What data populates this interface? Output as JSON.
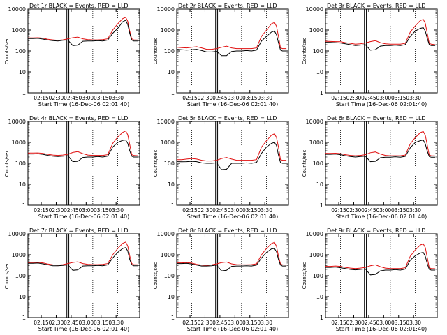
{
  "chart_data": {
    "type": "line",
    "layout": "3x3 small multiples",
    "shared": {
      "xlabel": "Start Time (16-Dec-06 02:01:40)",
      "ylabel": "Counts/sec",
      "yscale": "log",
      "ylim": [
        1,
        10000
      ],
      "ytick_labels": [
        "1",
        "10",
        "100",
        "1000",
        "10000"
      ],
      "xlim_minutes": [
        0,
        112
      ],
      "xtick_labels": [
        "02:15",
        "02:30",
        "02:45",
        "03:00",
        "03:15",
        "03:30"
      ],
      "x_sample_minutes": [
        0,
        5,
        10,
        15,
        20,
        25,
        30,
        35,
        40,
        45,
        50,
        55,
        60,
        65,
        70,
        75,
        80,
        85,
        90,
        95,
        98,
        100,
        102,
        104,
        106,
        110
      ],
      "series_colors": {
        "Events": "#000000",
        "LLD": "#e01010"
      },
      "dotted_markers_minutes": [
        15,
        65,
        90
      ],
      "gap_band_minutes": [
        39,
        41
      ]
    },
    "panels": [
      {
        "title": "Det 1r BLACK = Events, RED = LLD",
        "series": [
          {
            "name": "Events",
            "values": [
              390,
              390,
              400,
              370,
              330,
              310,
              300,
              320,
              330,
              180,
              190,
              290,
              300,
              300,
              310,
              300,
              330,
              700,
              1200,
              2500,
              2900,
              1800,
              700,
              330,
              300,
              300
            ]
          },
          {
            "name": "LLD",
            "values": [
              420,
              420,
              430,
              410,
              360,
              340,
              320,
              340,
              380,
              430,
              460,
              380,
              350,
              340,
              340,
              350,
              380,
              1000,
              2000,
              3500,
              4000,
              2600,
              900,
              380,
              340,
              330
            ]
          }
        ]
      },
      {
        "title": "Det 2r BLACK = Events, RED = LLD",
        "series": [
          {
            "name": "Events",
            "values": [
              120,
              115,
              110,
              115,
              120,
              105,
              90,
              90,
              95,
              60,
              60,
              95,
              100,
              100,
              105,
              100,
              110,
              300,
              500,
              800,
              900,
              600,
              250,
              110,
              100,
              100
            ]
          },
          {
            "name": "LLD",
            "values": [
              150,
              145,
              140,
              150,
              160,
              140,
              120,
              120,
              130,
              150,
              170,
              140,
              130,
              130,
              130,
              130,
              140,
              500,
              1000,
              2000,
              2300,
              1500,
              500,
              140,
              130,
              130
            ]
          }
        ]
      },
      {
        "title": "Det 3r BLACK = Events, RED = LLD",
        "series": [
          {
            "name": "Events",
            "values": [
              260,
              255,
              250,
              240,
              220,
              200,
              180,
              190,
              200,
              110,
              115,
              170,
              180,
              180,
              190,
              180,
              200,
              500,
              900,
              1200,
              1300,
              900,
              400,
              200,
              180,
              180
            ]
          },
          {
            "name": "LLD",
            "values": [
              290,
              285,
              280,
              275,
              250,
              230,
              210,
              220,
              240,
              280,
              310,
              250,
              220,
              210,
              210,
              210,
              230,
              800,
              1600,
              2800,
              3200,
              2100,
              700,
              230,
              210,
              200
            ]
          }
        ]
      },
      {
        "title": "Det 4r BLACK = Events, RED = LLD",
        "series": [
          {
            "name": "Events",
            "values": [
              280,
              280,
              285,
              270,
              240,
              220,
              210,
              220,
              230,
              120,
              125,
              190,
              200,
              200,
              210,
              200,
              220,
              600,
              1000,
              1250,
              1300,
              900,
              400,
              220,
              200,
              200
            ]
          },
          {
            "name": "LLD",
            "values": [
              310,
              310,
              315,
              300,
              270,
              250,
              240,
              250,
              270,
              330,
              360,
              290,
              250,
              240,
              240,
              240,
              260,
              900,
              1800,
              3000,
              3500,
              2300,
              800,
              260,
              240,
              230
            ]
          }
        ]
      },
      {
        "title": "Det 5r BLACK = Events, RED = LLD",
        "series": [
          {
            "name": "Events",
            "values": [
              120,
              118,
              120,
              125,
              120,
              105,
              100,
              100,
              105,
              50,
              52,
              100,
              100,
              100,
              105,
              100,
              110,
              300,
              600,
              900,
              1000,
              700,
              250,
              110,
              100,
              100
            ]
          },
          {
            "name": "LLD",
            "values": [
              150,
              150,
              160,
              170,
              160,
              140,
              130,
              130,
              140,
              170,
              190,
              160,
              140,
              140,
              140,
              140,
              150,
              600,
              1200,
              2200,
              2600,
              1700,
              600,
              150,
              140,
              140
            ]
          }
        ]
      },
      {
        "title": "Det 6r BLACK = Events, RED = LLD",
        "series": [
          {
            "name": "Events",
            "values": [
              270,
              270,
              275,
              260,
              230,
              210,
              200,
              210,
              220,
              120,
              125,
              185,
              195,
              195,
              205,
              195,
              215,
              550,
              1000,
              1200,
              1300,
              850,
              380,
              210,
              195,
              195
            ]
          },
          {
            "name": "LLD",
            "values": [
              300,
              300,
              305,
              290,
              260,
              240,
              230,
              240,
              260,
              320,
              350,
              280,
              240,
              230,
              230,
              230,
              250,
              850,
              1700,
              2900,
              3300,
              2200,
              750,
              250,
              230,
              225
            ]
          }
        ]
      },
      {
        "title": "Det 7r BLACK = Events, RED = LLD",
        "series": [
          {
            "name": "Events",
            "values": [
              390,
              390,
              400,
              370,
              330,
              300,
              300,
              310,
              330,
              180,
              190,
              290,
              300,
              300,
              310,
              300,
              330,
              700,
              1300,
              2000,
              2200,
              1500,
              600,
              330,
              300,
              300
            ]
          },
          {
            "name": "LLD",
            "values": [
              420,
              420,
              430,
              410,
              360,
              330,
              320,
              340,
              380,
              430,
              460,
              380,
              350,
              340,
              340,
              350,
              380,
              1000,
              2000,
              3500,
              4000,
              2600,
              900,
              380,
              340,
              330
            ]
          }
        ]
      },
      {
        "title": "Det 8r BLACK = Events, RED = LLD",
        "series": [
          {
            "name": "Events",
            "values": [
              380,
              380,
              390,
              360,
              320,
              290,
              290,
              300,
              320,
              170,
              180,
              280,
              290,
              290,
              300,
              290,
              320,
              700,
              1300,
              1900,
              2000,
              1400,
              600,
              320,
              290,
              290
            ]
          },
          {
            "name": "LLD",
            "values": [
              410,
              410,
              420,
              400,
              350,
              320,
              310,
              330,
              370,
              420,
              450,
              370,
              340,
              330,
              330,
              340,
              370,
              1000,
              2000,
              3400,
              3900,
              2500,
              880,
              370,
              330,
              320
            ]
          }
        ]
      },
      {
        "title": "Det 9r BLACK = Events, RED = LLD",
        "series": [
          {
            "name": "Events",
            "values": [
              250,
              250,
              260,
              240,
              220,
              200,
              190,
              200,
              210,
              110,
              115,
              170,
              185,
              185,
              195,
              185,
              205,
              550,
              900,
              1200,
              1300,
              850,
              380,
              200,
              185,
              185
            ]
          },
          {
            "name": "LLD",
            "values": [
              280,
              280,
              290,
              280,
              250,
              230,
              220,
              230,
              250,
              300,
              330,
              270,
              230,
              220,
              220,
              220,
              240,
              850,
              1700,
              2900,
              3300,
              2200,
              750,
              240,
              220,
              215
            ]
          }
        ]
      }
    ]
  }
}
